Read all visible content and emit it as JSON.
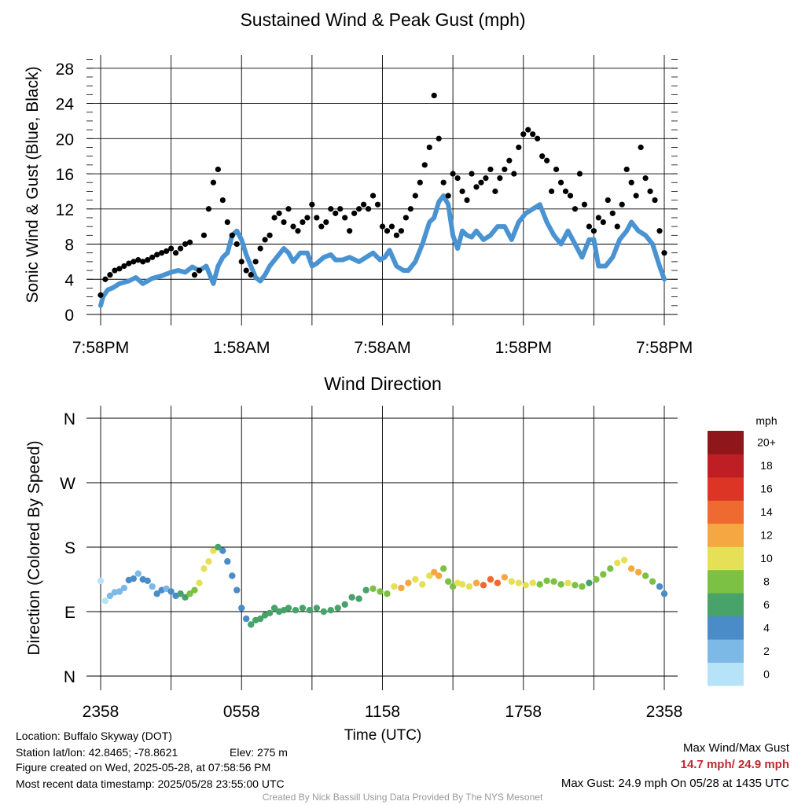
{
  "chart_data": [
    {
      "type": "scatter",
      "title": "Sustained Wind & Peak Gust (mph)",
      "ylabel": "Sonic Wind & Gust (Blue, Black)",
      "ylim": [
        0,
        29.5
      ],
      "yticks": [
        0,
        4,
        8,
        12,
        16,
        20,
        24,
        28
      ],
      "xlim": [
        0,
        24
      ],
      "xtick_labels": [
        "7:58PM",
        "1:58AM",
        "7:58AM",
        "1:58PM",
        "7:58PM"
      ],
      "xticks": [
        0,
        6,
        12,
        18,
        24
      ],
      "grid": true,
      "series": [
        {
          "role": "sustained",
          "color": "#4a93d2",
          "style": "line",
          "x": [
            0.0,
            0.1,
            0.3,
            0.5,
            0.8,
            1.2,
            1.5,
            1.8,
            2.2,
            2.6,
            3.0,
            3.3,
            3.6,
            3.9,
            4.2,
            4.5,
            4.8,
            5.0,
            5.2,
            5.4,
            5.6,
            5.8,
            6.0,
            6.2,
            6.4,
            6.6,
            6.8,
            7.0,
            7.2,
            7.5,
            7.8,
            8.0,
            8.2,
            8.5,
            8.8,
            9.0,
            9.2,
            9.5,
            9.8,
            10.0,
            10.3,
            10.6,
            11.0,
            11.3,
            11.6,
            11.9,
            12.1,
            12.3,
            12.6,
            12.9,
            13.1,
            13.4,
            13.7,
            14.0,
            14.2,
            14.4,
            14.6,
            14.8,
            15.0,
            15.2,
            15.4,
            15.6,
            15.8,
            16.0,
            16.3,
            16.6,
            16.9,
            17.2,
            17.5,
            17.8,
            18.1,
            18.4,
            18.7,
            19.0,
            19.3,
            19.6,
            19.9,
            20.2,
            20.5,
            20.8,
            21.0,
            21.2,
            21.5,
            21.8,
            22.1,
            22.4,
            22.6,
            22.9,
            23.2,
            23.5,
            23.8,
            24.0
          ],
          "y": [
            1.0,
            2.0,
            2.8,
            3.0,
            3.5,
            3.8,
            4.2,
            3.5,
            4.1,
            4.4,
            4.8,
            5.0,
            4.8,
            5.4,
            5.0,
            5.5,
            3.5,
            5.5,
            6.5,
            7.0,
            9.0,
            9.5,
            8.5,
            6.8,
            5.5,
            4.2,
            3.8,
            4.5,
            5.5,
            6.5,
            7.5,
            7.0,
            6.0,
            7.0,
            7.0,
            5.5,
            5.8,
            6.5,
            6.8,
            6.2,
            6.2,
            6.5,
            6.0,
            6.5,
            7.0,
            6.2,
            6.5,
            7.3,
            5.5,
            5.0,
            5.0,
            6.0,
            8.0,
            10.5,
            11.0,
            12.8,
            13.5,
            12.5,
            9.0,
            7.5,
            9.5,
            9.0,
            8.8,
            9.5,
            8.5,
            9.0,
            10.0,
            10.0,
            8.5,
            10.5,
            11.5,
            12.0,
            12.5,
            10.5,
            9.0,
            8.0,
            9.5,
            8.0,
            6.5,
            8.5,
            8.5,
            5.5,
            5.5,
            6.5,
            8.5,
            9.5,
            10.5,
            9.5,
            9.0,
            8.0,
            5.5,
            4.0
          ]
        },
        {
          "role": "gust",
          "color": "#000000",
          "style": "markers",
          "x": [
            0.0,
            0.2,
            0.4,
            0.6,
            0.8,
            1.0,
            1.2,
            1.4,
            1.6,
            1.8,
            2.0,
            2.2,
            2.4,
            2.6,
            2.8,
            3.0,
            3.2,
            3.4,
            3.6,
            3.8,
            4.0,
            4.2,
            4.4,
            4.6,
            4.8,
            5.0,
            5.2,
            5.4,
            5.6,
            5.8,
            6.0,
            6.2,
            6.4,
            6.6,
            6.8,
            7.0,
            7.2,
            7.4,
            7.6,
            7.8,
            8.0,
            8.2,
            8.4,
            8.6,
            8.8,
            9.0,
            9.2,
            9.4,
            9.6,
            9.8,
            10.0,
            10.2,
            10.4,
            10.6,
            10.8,
            11.0,
            11.2,
            11.4,
            11.6,
            11.8,
            12.0,
            12.2,
            12.4,
            12.6,
            12.8,
            13.0,
            13.2,
            13.4,
            13.6,
            13.8,
            14.0,
            14.2,
            14.4,
            14.6,
            14.8,
            15.0,
            15.2,
            15.4,
            15.6,
            15.8,
            16.0,
            16.2,
            16.4,
            16.6,
            16.8,
            17.0,
            17.2,
            17.4,
            17.6,
            17.8,
            18.0,
            18.2,
            18.4,
            18.6,
            18.8,
            19.0,
            19.2,
            19.4,
            19.6,
            19.8,
            20.0,
            20.2,
            20.4,
            20.6,
            20.8,
            21.0,
            21.2,
            21.4,
            21.6,
            21.8,
            22.0,
            22.2,
            22.4,
            22.6,
            22.8,
            23.0,
            23.2,
            23.4,
            23.6,
            23.8,
            24.0
          ],
          "y": [
            2.2,
            4.0,
            4.5,
            5.0,
            5.2,
            5.5,
            5.8,
            6.0,
            6.2,
            6.0,
            6.2,
            6.5,
            6.8,
            7.0,
            7.2,
            7.5,
            7.0,
            7.5,
            8.0,
            8.2,
            4.5,
            5.0,
            9.0,
            12.0,
            15.0,
            16.5,
            13.0,
            10.5,
            9.0,
            8.0,
            6.0,
            5.0,
            4.5,
            6.0,
            7.5,
            8.5,
            9.0,
            11.0,
            11.5,
            10.5,
            12.0,
            10.0,
            9.5,
            10.5,
            11.0,
            12.5,
            11.0,
            10.0,
            10.5,
            12.0,
            11.5,
            12.0,
            11.0,
            9.5,
            11.5,
            12.0,
            12.5,
            12.0,
            13.5,
            12.5,
            10.0,
            9.5,
            10.0,
            9.0,
            9.5,
            11.0,
            12.0,
            13.5,
            15.0,
            17.0,
            19.0,
            24.9,
            20.0,
            15.0,
            13.5,
            16.0,
            15.5,
            14.0,
            13.0,
            16.0,
            14.5,
            15.0,
            15.5,
            16.5,
            14.0,
            15.5,
            16.5,
            17.5,
            16.0,
            19.0,
            20.5,
            21.0,
            20.5,
            20.0,
            18.0,
            17.5,
            14.0,
            16.5,
            15.0,
            14.0,
            13.5,
            12.0,
            16.0,
            12.5,
            10.0,
            9.5,
            11.0,
            10.5,
            13.0,
            11.5,
            10.0,
            12.5,
            16.5,
            15.0,
            13.5,
            19.0,
            15.5,
            14.0,
            13.0,
            9.5,
            7.0
          ]
        }
      ]
    },
    {
      "type": "scatter",
      "title": "Wind Direction",
      "ylabel": "Direction (Colored By Speed)",
      "xlabel": "Time (UTC)",
      "xlim": [
        0,
        24
      ],
      "xtick_labels": [
        "2358",
        "0558",
        "1158",
        "1758",
        "2358"
      ],
      "xticks": [
        0,
        6,
        12,
        18,
        24
      ],
      "ylim": [
        0,
        360
      ],
      "ytick_labels": [
        "N",
        "E",
        "S",
        "W",
        "N"
      ],
      "yticks": [
        0,
        90,
        180,
        270,
        360
      ],
      "grid": true,
      "colorbar": {
        "title": "mph",
        "labels": [
          "0",
          "2",
          "4",
          "6",
          "8",
          "10",
          "12",
          "14",
          "16",
          "18",
          "20+"
        ],
        "colors": [
          "#b6e3f7",
          "#7cb9e6",
          "#4a8cc7",
          "#47a36a",
          "#7cc143",
          "#e5e055",
          "#f5a742",
          "#ef6a30",
          "#dc3526",
          "#be1e24",
          "#8f161a"
        ]
      },
      "x": [
        0.0,
        0.2,
        0.4,
        0.6,
        0.8,
        1.0,
        1.2,
        1.4,
        1.6,
        1.8,
        2.0,
        2.2,
        2.4,
        2.6,
        2.8,
        3.0,
        3.2,
        3.4,
        3.6,
        3.8,
        4.0,
        4.2,
        4.4,
        4.6,
        4.8,
        5.0,
        5.2,
        5.4,
        5.6,
        5.8,
        6.0,
        6.2,
        6.4,
        6.6,
        6.8,
        7.0,
        7.2,
        7.4,
        7.6,
        7.8,
        8.0,
        8.3,
        8.6,
        8.9,
        9.2,
        9.5,
        9.8,
        10.1,
        10.4,
        10.7,
        11.0,
        11.3,
        11.6,
        11.9,
        12.2,
        12.5,
        12.8,
        13.1,
        13.4,
        13.7,
        14.0,
        14.2,
        14.4,
        14.6,
        14.8,
        15.0,
        15.2,
        15.4,
        15.7,
        16.0,
        16.3,
        16.6,
        16.9,
        17.2,
        17.5,
        17.8,
        18.1,
        18.4,
        18.7,
        19.0,
        19.3,
        19.6,
        19.9,
        20.2,
        20.5,
        20.8,
        21.1,
        21.4,
        21.7,
        22.0,
        22.3,
        22.6,
        22.9,
        23.2,
        23.5,
        23.8,
        24.0
      ],
      "y": [
        133,
        105,
        112,
        117,
        118,
        123,
        134,
        136,
        143,
        135,
        133,
        125,
        115,
        120,
        122,
        118,
        112,
        115,
        110,
        115,
        120,
        130,
        150,
        160,
        175,
        180,
        175,
        160,
        140,
        120,
        95,
        80,
        72,
        78,
        80,
        85,
        88,
        95,
        90,
        92,
        95,
        92,
        95,
        92,
        95,
        90,
        92,
        95,
        100,
        110,
        108,
        120,
        122,
        118,
        115,
        125,
        123,
        130,
        135,
        128,
        140,
        145,
        140,
        150,
        132,
        125,
        130,
        128,
        125,
        130,
        127,
        135,
        130,
        138,
        132,
        130,
        127,
        130,
        128,
        133,
        132,
        128,
        130,
        127,
        125,
        130,
        135,
        142,
        150,
        158,
        162,
        150,
        145,
        140,
        132,
        125,
        115
      ],
      "speed": [
        1,
        1,
        2,
        2,
        2,
        3,
        4,
        4,
        3,
        4,
        4,
        3,
        4,
        4,
        3,
        5,
        5,
        6,
        6,
        8,
        9,
        10,
        10,
        10,
        10,
        7,
        5,
        4,
        4,
        4,
        4,
        5,
        6,
        6,
        6,
        6,
        6,
        6,
        6,
        7,
        7,
        7,
        6,
        7,
        7,
        7,
        6,
        6,
        6,
        7,
        7,
        7,
        8,
        8,
        9,
        11,
        12,
        13,
        10,
        10,
        11,
        12,
        12,
        9,
        8,
        9,
        10,
        11,
        11,
        12,
        14,
        15,
        14,
        12,
        11,
        10,
        11,
        10,
        9,
        8,
        8,
        9,
        10,
        9,
        8,
        7,
        8,
        8,
        9,
        10,
        11,
        13,
        12,
        9,
        8,
        5,
        4
      ]
    }
  ],
  "footer": {
    "location": "Location: Buffalo Skyway (DOT)",
    "latlon": "Station lat/lon: 42.8465; -78.8621",
    "elev": "Elev: 275 m",
    "created": "Figure created on Wed, 2025-05-28, at 07:58:56 PM",
    "recent": "Most recent data timestamp: 2025/05/28 23:55:00 UTC",
    "maxlabel": "Max Wind/Max Gust",
    "maxvalues": "14.7 mph/ 24.9 mph",
    "maxgust": "Max Gust: 24.9 mph On 05/28 at 1435 UTC",
    "credit": "Created By Nick Bassill Using Data Provided By The NYS Mesonet"
  }
}
